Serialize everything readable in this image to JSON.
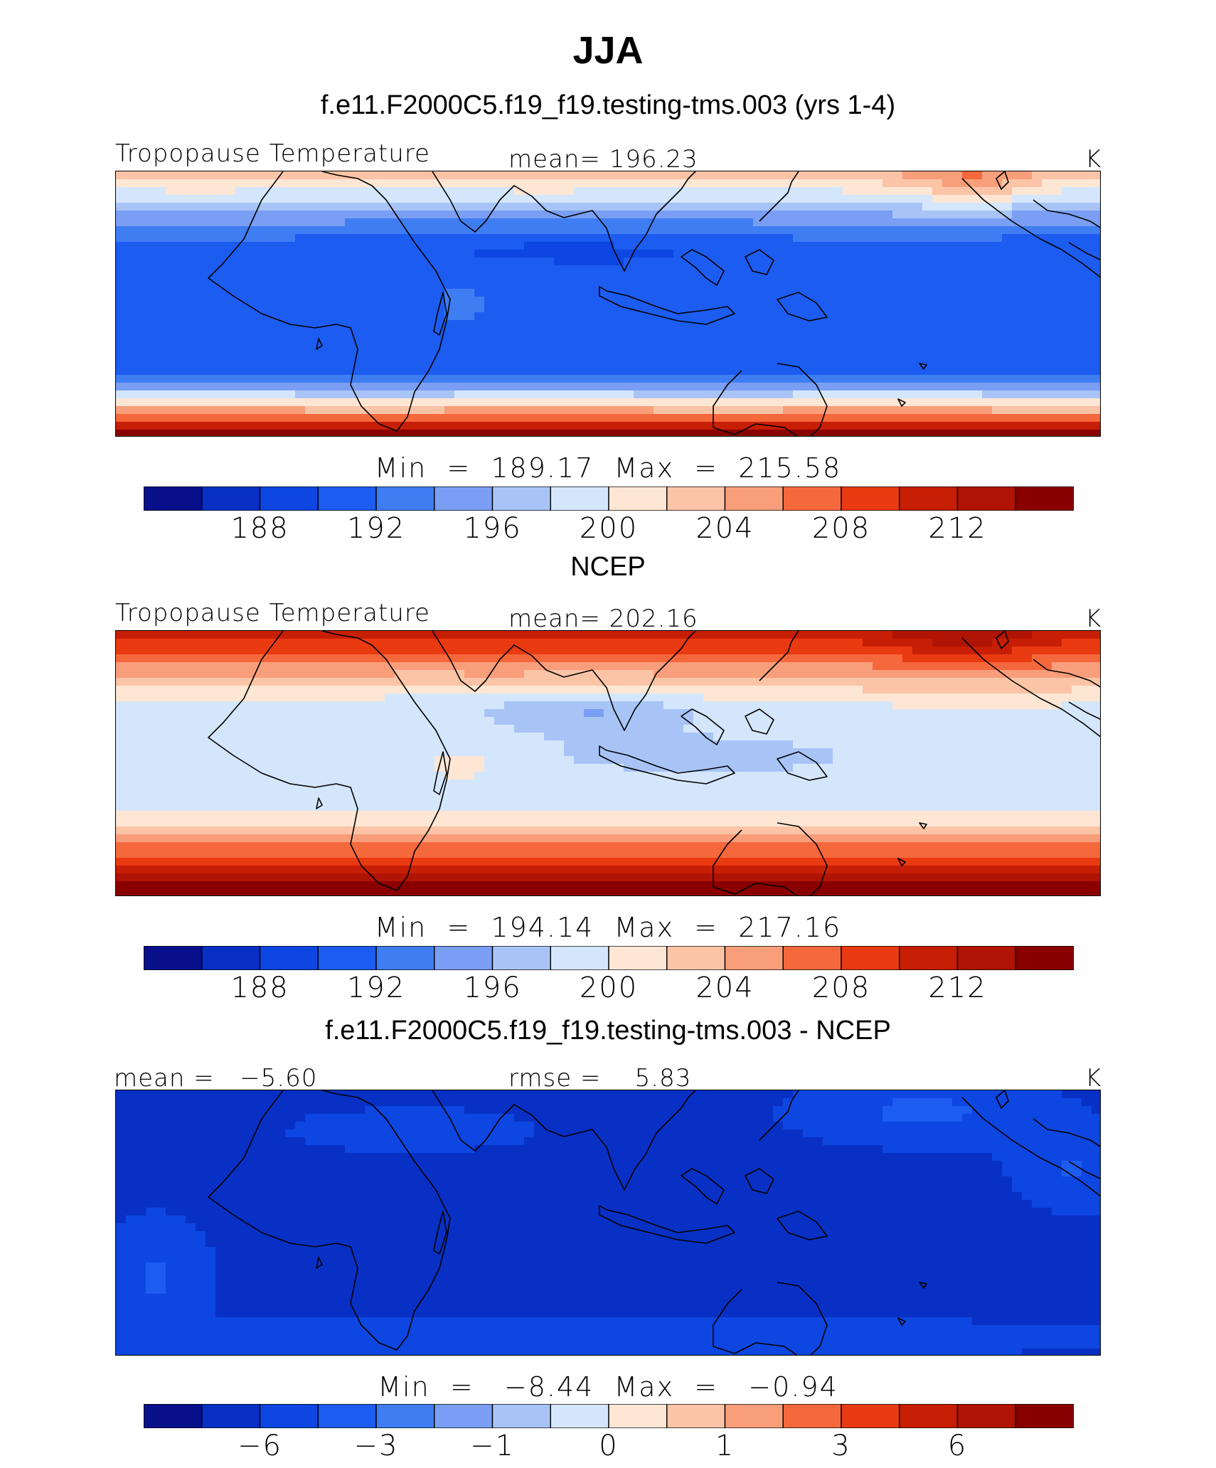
{
  "figure": {
    "season": "JJA"
  },
  "colors": {
    "palette": [
      "#08108c",
      "#0830c4",
      "#0d46e0",
      "#1c5cf0",
      "#3f7df2",
      "#7a9ef4",
      "#a8c4f6",
      "#d4e6fb",
      "#fde6d4",
      "#fbc4a6",
      "#f89e7a",
      "#f5683c",
      "#e93a12",
      "#c71e06",
      "#b01404",
      "#8a0000"
    ]
  },
  "chart_data": [
    {
      "type": "heatmap",
      "panel": "test",
      "title": "f.e11.F2000C5.f19_f19.testing-tms.003 (yrs 1-4)",
      "variable": "Tropopause Temperature",
      "mean_label": "mean= 196.23",
      "units": "K",
      "minmax_label": "Min  =  189.17  Max  =  215.58",
      "stats": {
        "mean": 196.23,
        "min": 189.17,
        "max": 215.58
      },
      "colorbar_labels": [
        "188",
        "192",
        "196",
        "200",
        "204",
        "208",
        "212"
      ],
      "contour_levels": [
        186,
        188,
        190,
        192,
        194,
        196,
        198,
        200,
        202,
        204,
        206,
        208,
        210,
        212,
        214
      ]
    },
    {
      "type": "heatmap",
      "panel": "obs",
      "title": "NCEP",
      "variable": "Tropopause Temperature",
      "mean_label": "mean= 202.16",
      "units": "K",
      "minmax_label": "Min  =  194.14  Max  =  217.16",
      "stats": {
        "mean": 202.16,
        "min": 194.14,
        "max": 217.16
      },
      "colorbar_labels": [
        "188",
        "192",
        "196",
        "200",
        "204",
        "208",
        "212"
      ],
      "contour_levels": [
        186,
        188,
        190,
        192,
        194,
        196,
        198,
        200,
        202,
        204,
        206,
        208,
        210,
        212,
        214
      ]
    },
    {
      "type": "heatmap",
      "panel": "diff",
      "title": "f.e11.F2000C5.f19_f19.testing-tms.003 - NCEP",
      "mean_label": "mean =   −5.60",
      "rmse_label": "rmse =    5.83",
      "units": "K",
      "minmax_label": "Min  =   −8.44  Max  =   −0.94",
      "stats": {
        "mean": -5.6,
        "rmse": 5.83,
        "min": -8.44,
        "max": -0.94
      },
      "colorbar_labels": [
        "−6",
        "−3",
        "−1",
        "0",
        "1",
        "3",
        "6"
      ],
      "contour_levels": [
        -8,
        -6,
        -4,
        -3,
        -2,
        -1,
        -0.5,
        0,
        0.5,
        1,
        2,
        3,
        4,
        6,
        8
      ]
    }
  ]
}
